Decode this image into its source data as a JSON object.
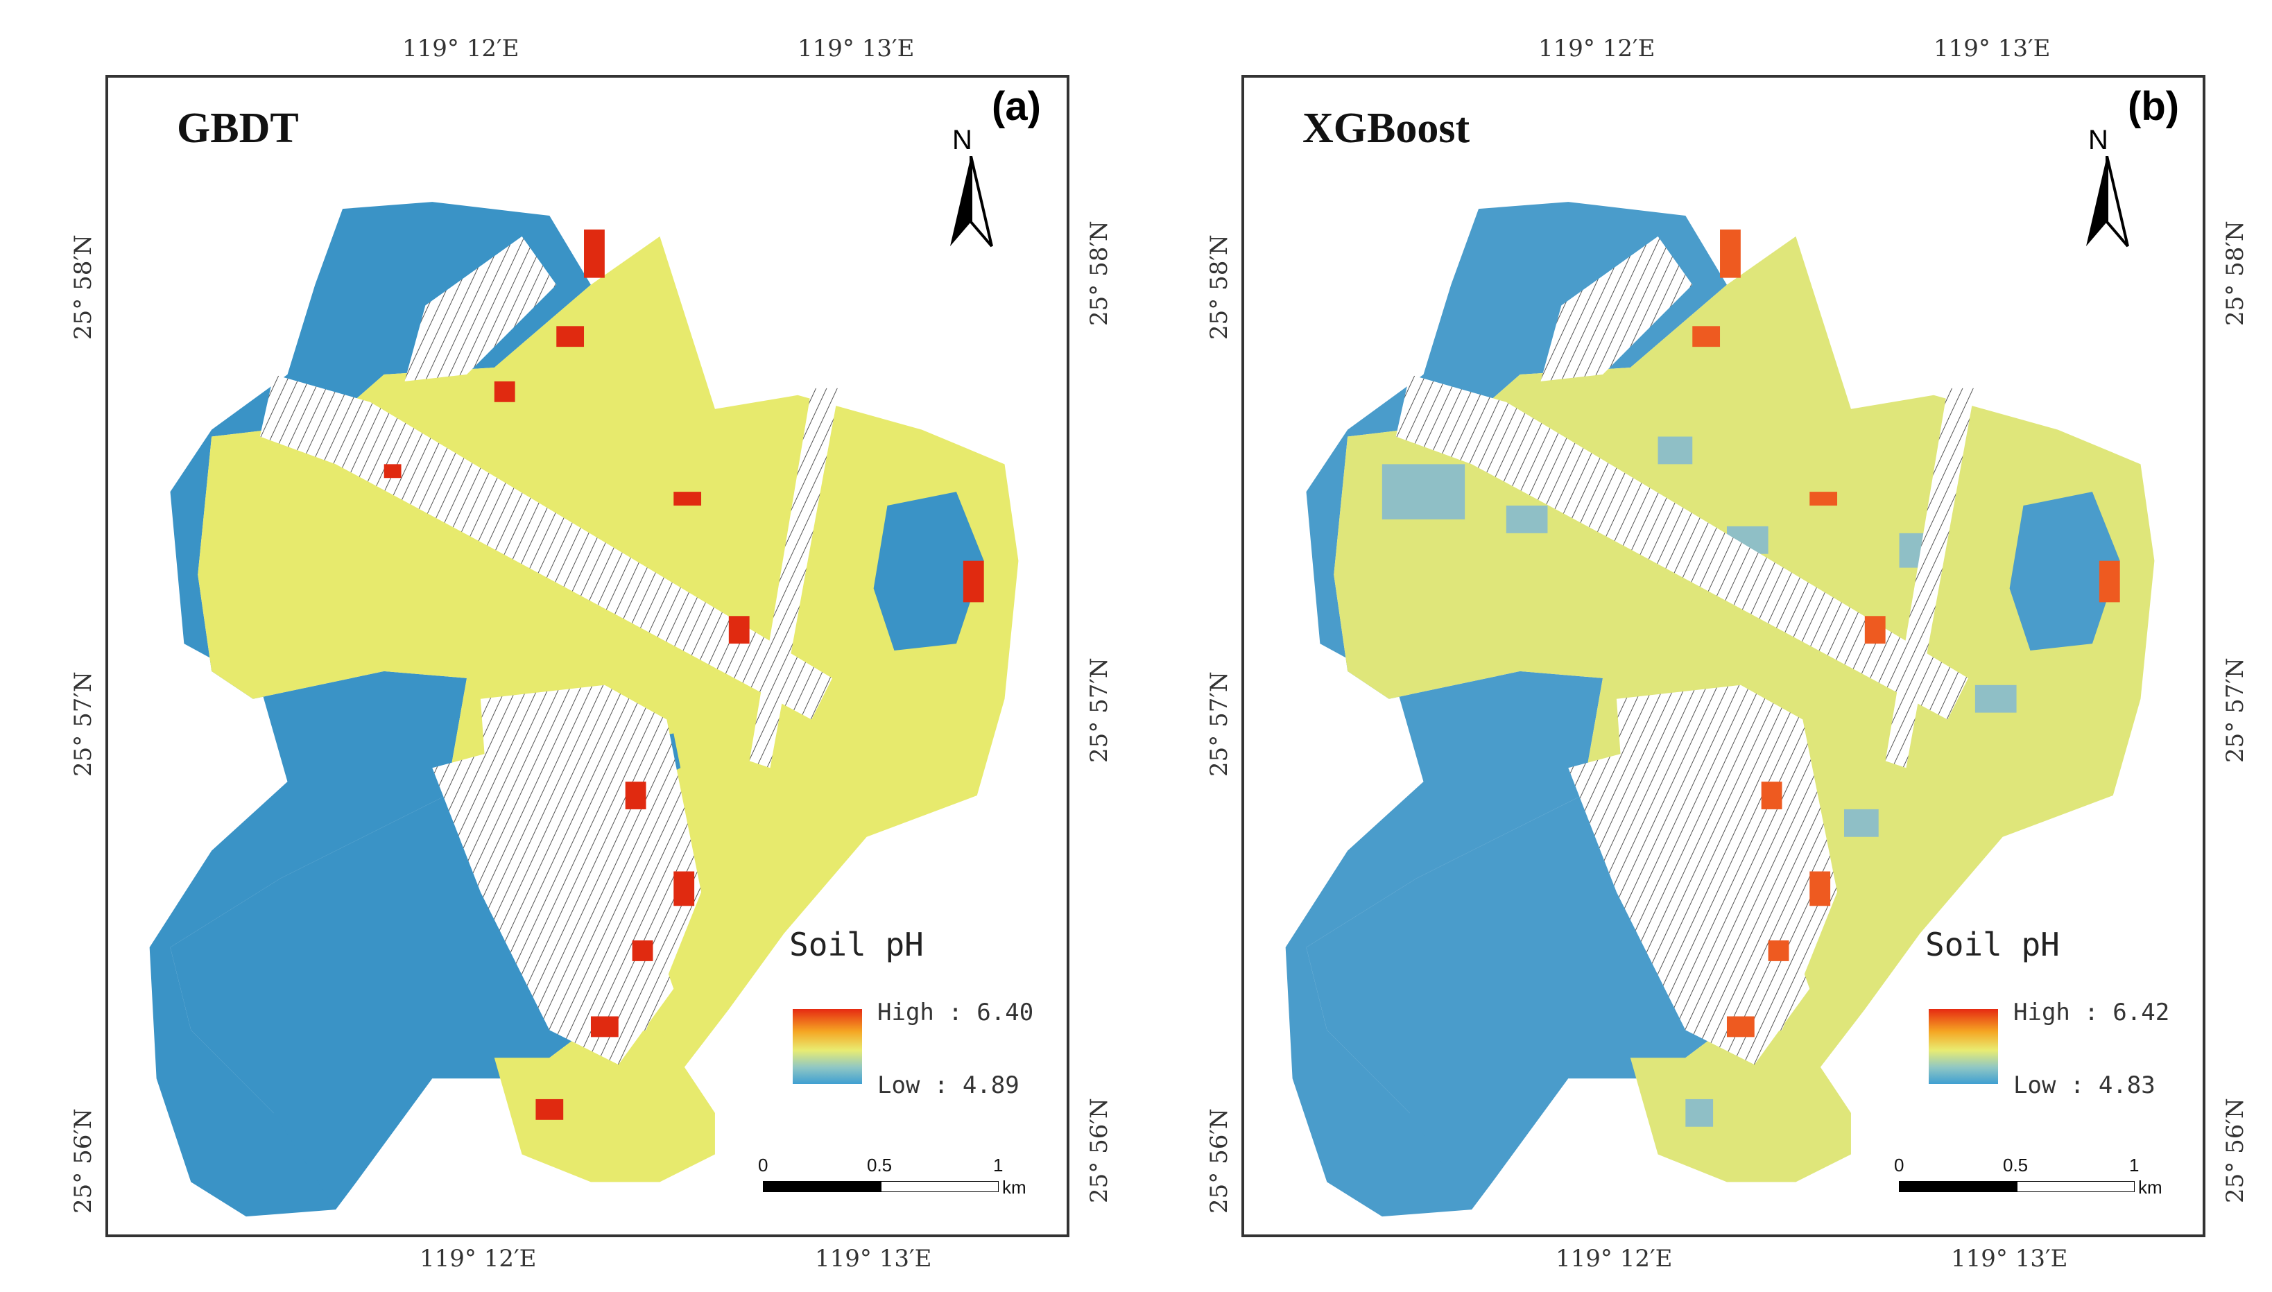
{
  "panels": [
    {
      "id": "a",
      "model": "GBDT",
      "panel_label": "(a)",
      "legend": {
        "title": "Soil pH",
        "high_label": "High : 6.40",
        "low_label": "Low : 4.89"
      }
    },
    {
      "id": "b",
      "model": "XGBoost",
      "panel_label": "(b)",
      "legend": {
        "title": "Soil pH",
        "high_label": "High : 6.42",
        "low_label": "Low : 4.83"
      }
    }
  ],
  "coords": {
    "lon_left": "119° 12′E",
    "lon_right": "119° 13′E",
    "lat_top": "25° 58′N",
    "lat_mid": "25° 57′N",
    "lat_bottom": "25° 56′N"
  },
  "north_letter": "N",
  "scale": {
    "zero": "0",
    "half": "0.5",
    "one": "1",
    "unit": "km"
  },
  "colors": {
    "high": "#e62a12",
    "mid": "#e9ec72",
    "low": "#3f9fd1",
    "frame": "#333333"
  }
}
